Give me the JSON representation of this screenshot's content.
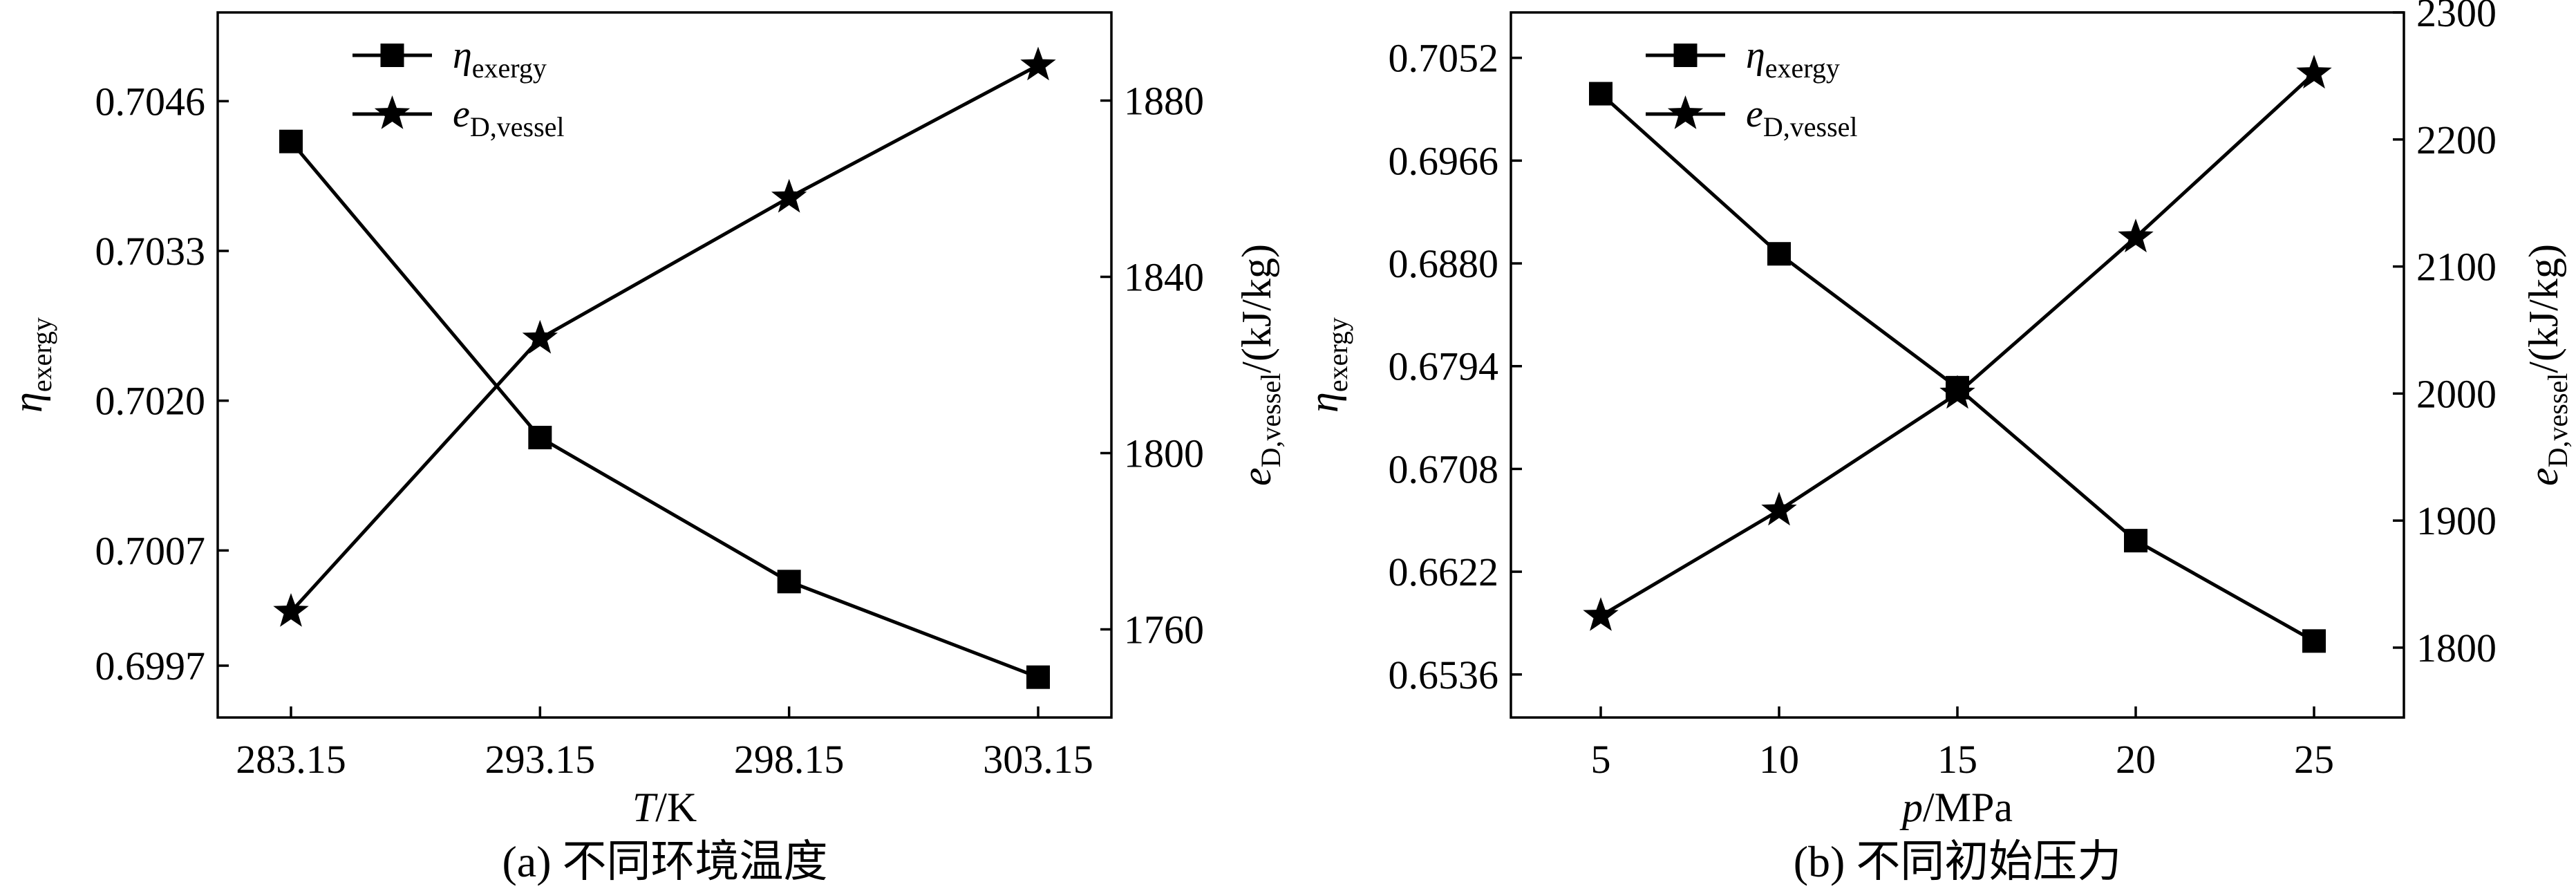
{
  "chart_data": [
    {
      "type": "line",
      "caption": "(a) 不同环境温度",
      "categories": [
        "283.15",
        "293.15",
        "298.15",
        "303.15"
      ],
      "xlabel": {
        "italic": "T",
        "rest": "/K"
      },
      "ylabel_left": {
        "symbol": "η",
        "sub": "exergy"
      },
      "ylabel_right": {
        "symbol": "e",
        "sub": "D,vessel",
        "rest": "/(kJ/kg)"
      },
      "yticks_left": [
        "0.6997",
        "0.7007",
        "0.7020",
        "0.7033",
        "0.7046"
      ],
      "ylim_left": [
        0.69925,
        0.70537
      ],
      "yticks_right": [
        "1760",
        "1800",
        "1840",
        "1880"
      ],
      "ylim_right": [
        1740,
        1900
      ],
      "series": [
        {
          "name_symbol": "η",
          "name_sub": "exergy",
          "axis": "left",
          "marker": "square",
          "values": [
            0.70425,
            0.70168,
            0.70043,
            0.6996
          ]
        },
        {
          "name_symbol": "e",
          "name_sub": "D,vessel",
          "axis": "right",
          "marker": "star",
          "values": [
            1764,
            1826,
            1858,
            1888
          ]
        }
      ]
    },
    {
      "type": "line",
      "caption": "(b) 不同初始压力",
      "categories": [
        "5",
        "10",
        "15",
        "20",
        "25"
      ],
      "xlabel": {
        "italic": "p",
        "rest": "/MPa"
      },
      "ylabel_left": {
        "symbol": "η",
        "sub": "exergy"
      },
      "ylabel_right": {
        "symbol": "e",
        "sub": "D,vessel",
        "rest": "/(kJ/kg)"
      },
      "yticks_left": [
        "0.6536",
        "0.6622",
        "0.6708",
        "0.6794",
        "0.6880",
        "0.6966",
        "0.7052"
      ],
      "ylim_left": [
        0.65,
        0.709
      ],
      "yticks_right": [
        "1800",
        "1900",
        "2000",
        "2100",
        "2200",
        "2300"
      ],
      "ylim_right": [
        1745,
        2300
      ],
      "series": [
        {
          "name_symbol": "η",
          "name_sub": "exergy",
          "axis": "left",
          "marker": "square",
          "values": [
            0.7022,
            0.6888,
            0.6776,
            0.6648,
            0.6564
          ]
        },
        {
          "name_symbol": "e",
          "name_sub": "D,vessel",
          "axis": "right",
          "marker": "star",
          "values": [
            1825,
            1908,
            2000,
            2123,
            2252
          ]
        }
      ]
    }
  ]
}
